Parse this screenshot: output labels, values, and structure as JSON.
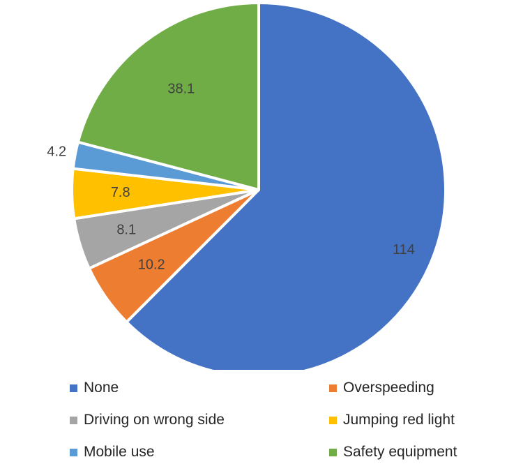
{
  "chart_data": {
    "type": "pie",
    "title": "",
    "categories": [
      "None",
      "Overspeeding",
      "Driving on wrong side",
      "Jumping red light",
      "Mobile use",
      "Safety equipment"
    ],
    "values": [
      114,
      10.2,
      8.1,
      7.8,
      4.2,
      38.1
    ],
    "data_labels": [
      "114",
      "10.2",
      "8.1",
      "7.8",
      "4.2",
      "38.1"
    ],
    "colors": [
      "#4472C4",
      "#ED7D31",
      "#A5A5A5",
      "#FFC000",
      "#5B9BD5",
      "#70AD47"
    ],
    "start_angle": "12 o'clock",
    "direction": "clockwise",
    "legend_position": "bottom"
  }
}
